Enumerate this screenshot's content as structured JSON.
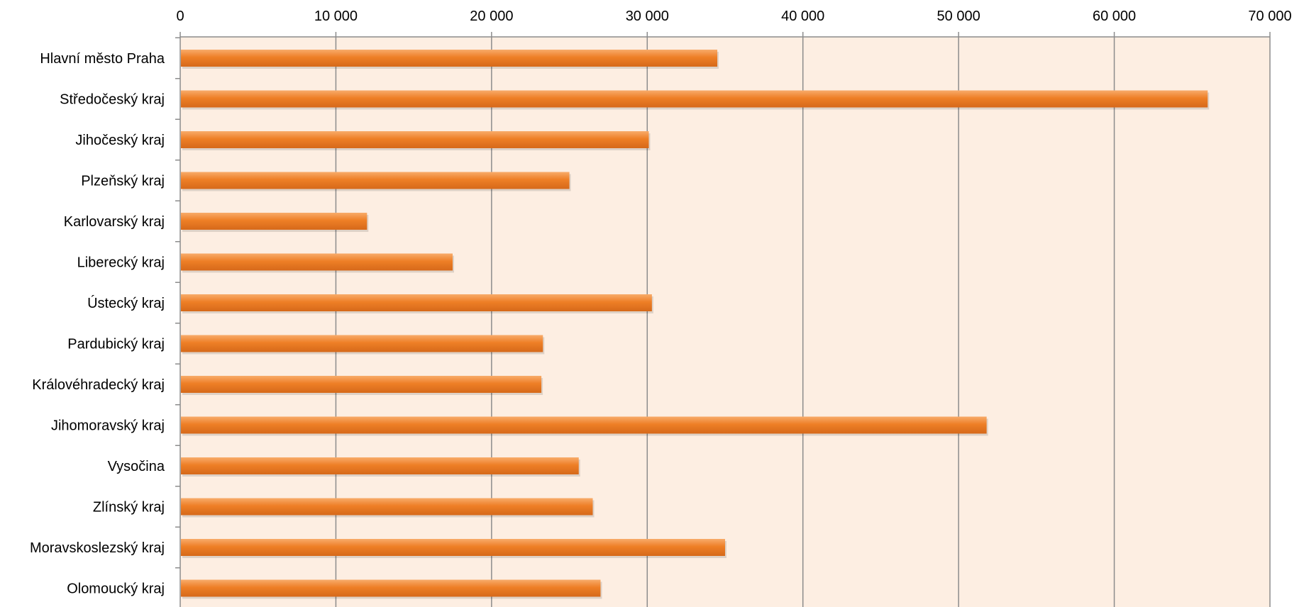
{
  "chart_data": {
    "type": "bar",
    "orientation": "horizontal",
    "categories": [
      "Hlavní město Praha",
      "Středočeský kraj",
      "Jihočeský kraj",
      "Plzeňský kraj",
      "Karlovarský kraj",
      "Liberecký kraj",
      "Ústecký kraj",
      "Pardubický kraj",
      "Královéhradecký kraj",
      "Jihomoravský kraj",
      "Vysočina",
      "Zlínský kraj",
      "Moravskoslezský kraj",
      "Olomoucký kraj"
    ],
    "values": [
      34500,
      66000,
      30100,
      25000,
      12000,
      17500,
      30300,
      23300,
      23200,
      51800,
      25600,
      26500,
      35000,
      27000
    ],
    "xlim": [
      0,
      70000
    ],
    "x_ticks": [
      0,
      10000,
      20000,
      30000,
      40000,
      50000,
      60000,
      70000
    ],
    "x_tick_labels": [
      "0",
      "10 000",
      "20 000",
      "30 000",
      "40 000",
      "50 000",
      "60 000",
      "70 000"
    ],
    "x_axis_position": "top",
    "grid": true,
    "legend": "none",
    "colors": {
      "bar": "#ee7f26",
      "bar_light": "#f8ab6a",
      "bar_dark": "#d6691a",
      "plot_background": "#fdeee2",
      "grid": "#8c8c8c",
      "axis": "#8c8c8c"
    }
  }
}
